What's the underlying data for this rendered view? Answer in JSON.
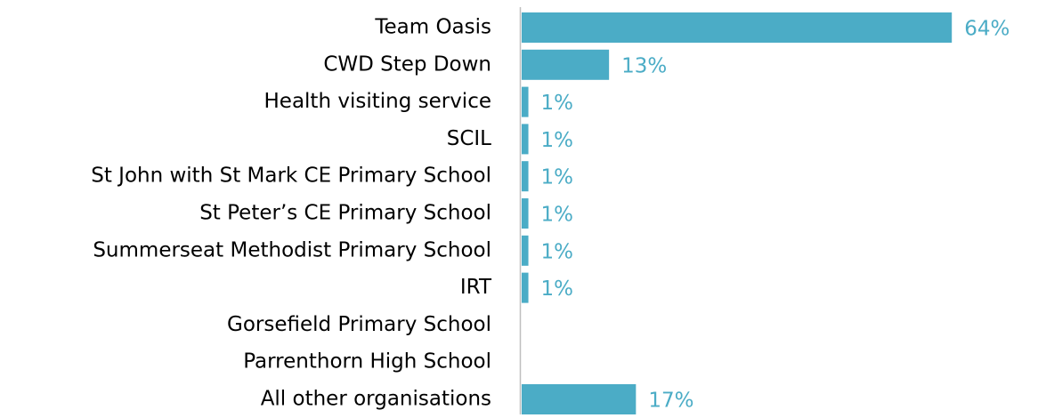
{
  "chart_data": {
    "type": "hbar",
    "categories": [
      "Team Oasis",
      "CWD Step Down",
      "Health visiting service",
      "SCIL",
      "St John with St Mark CE Primary School",
      "St Peter’s CE Primary School",
      "Summerseat Methodist Primary School",
      "IRT",
      "Gorsefield Primary School",
      "Parrenthorn High School",
      "All other organisations"
    ],
    "values": [
      64,
      13,
      1,
      1,
      1,
      1,
      1,
      1,
      null,
      null,
      17
    ],
    "value_labels": [
      "64%",
      "13%",
      "1%",
      "1%",
      "1%",
      "1%",
      "1%",
      "1%",
      null,
      null,
      "17%"
    ],
    "color": "#4bacc6"
  }
}
